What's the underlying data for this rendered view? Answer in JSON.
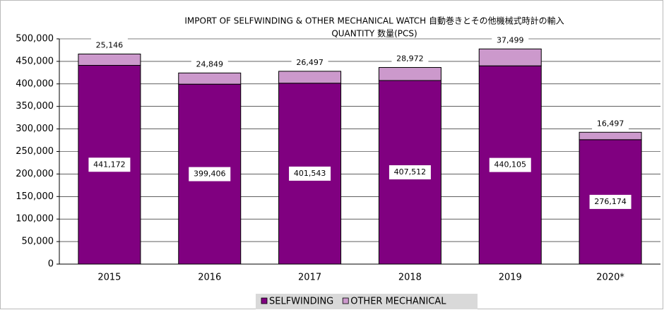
{
  "chart_data": {
    "type": "stacked_bar",
    "title": "IMPORT OF SELFWINDING & OTHER MECHANICAL WATCH  自動巻きとその他機械式時計の輸入",
    "subtitle": "QUANTITY  数量(PCS)",
    "categories": [
      "2015",
      "2016",
      "2017",
      "2018",
      "2019",
      "2020*"
    ],
    "series": [
      {
        "name": "SELFWINDING",
        "color": "#800080",
        "values": [
          441172,
          399406,
          401543,
          407512,
          440105,
          276174
        ],
        "value_labels": [
          "441,172",
          "399,406",
          "401,543",
          "407,512",
          "440,105",
          "276,174"
        ]
      },
      {
        "name": "OTHER MECHANICAL",
        "color": "#cc99cc",
        "values": [
          25146,
          24849,
          26497,
          28972,
          37499,
          16497
        ],
        "value_labels": [
          "25,146",
          "24,849",
          "26,497",
          "28,972",
          "37,499",
          "16,497"
        ]
      }
    ],
    "ylim": [
      0,
      500000
    ],
    "yticks": [
      0,
      {
        "value": 50000,
        "label": "50,000"
      },
      {
        "value": 100000,
        "label": "100,000"
      },
      {
        "value": 150000,
        "label": "150,000"
      },
      {
        "value": 200000,
        "label": "200,000"
      },
      {
        "value": 250000,
        "label": "250,000"
      },
      {
        "value": 300000,
        "label": "300,000"
      },
      {
        "value": 350000,
        "label": "350,000"
      },
      {
        "value": 400000,
        "label": "400,000"
      },
      {
        "value": 450000,
        "label": "450,000"
      },
      {
        "value": 500000,
        "label": "500,000"
      }
    ],
    "grid": true
  }
}
